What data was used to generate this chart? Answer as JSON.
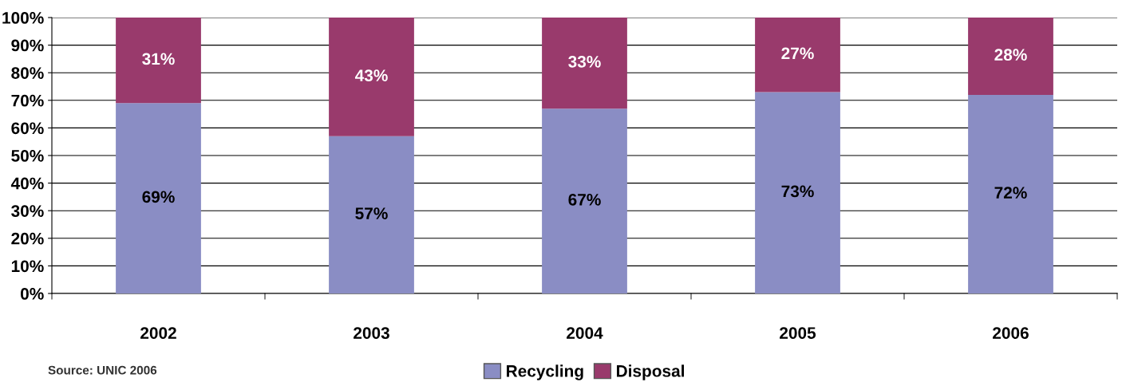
{
  "chart_data": {
    "type": "bar",
    "stacked": true,
    "categories": [
      "2002",
      "2003",
      "2004",
      "2005",
      "2006"
    ],
    "series": [
      {
        "name": "Recycling",
        "color": "#8a8dc4",
        "values": [
          69,
          57,
          67,
          73,
          72
        ],
        "value_labels": [
          "69%",
          "57%",
          "67%",
          "73%",
          "72%"
        ]
      },
      {
        "name": "Disposal",
        "color": "#993a6c",
        "values": [
          31,
          43,
          33,
          27,
          28
        ],
        "value_labels": [
          "31%",
          "43%",
          "33%",
          "27%",
          "28%"
        ]
      }
    ],
    "ylim": [
      0,
      100
    ],
    "yticks": [
      {
        "value": 0,
        "label": "0%"
      },
      {
        "value": 10,
        "label": "10%"
      },
      {
        "value": 20,
        "label": "20%"
      },
      {
        "value": 30,
        "label": "30%"
      },
      {
        "value": 40,
        "label": "40%"
      },
      {
        "value": 50,
        "label": "50%"
      },
      {
        "value": 60,
        "label": "60%"
      },
      {
        "value": 70,
        "label": "70%"
      },
      {
        "value": 80,
        "label": "80%"
      },
      {
        "value": 90,
        "label": "90%"
      },
      {
        "value": 100,
        "label": "100%"
      }
    ],
    "grid": "y",
    "legend": "bottom",
    "annotations": [
      "Source: UNIC 2006"
    ]
  }
}
